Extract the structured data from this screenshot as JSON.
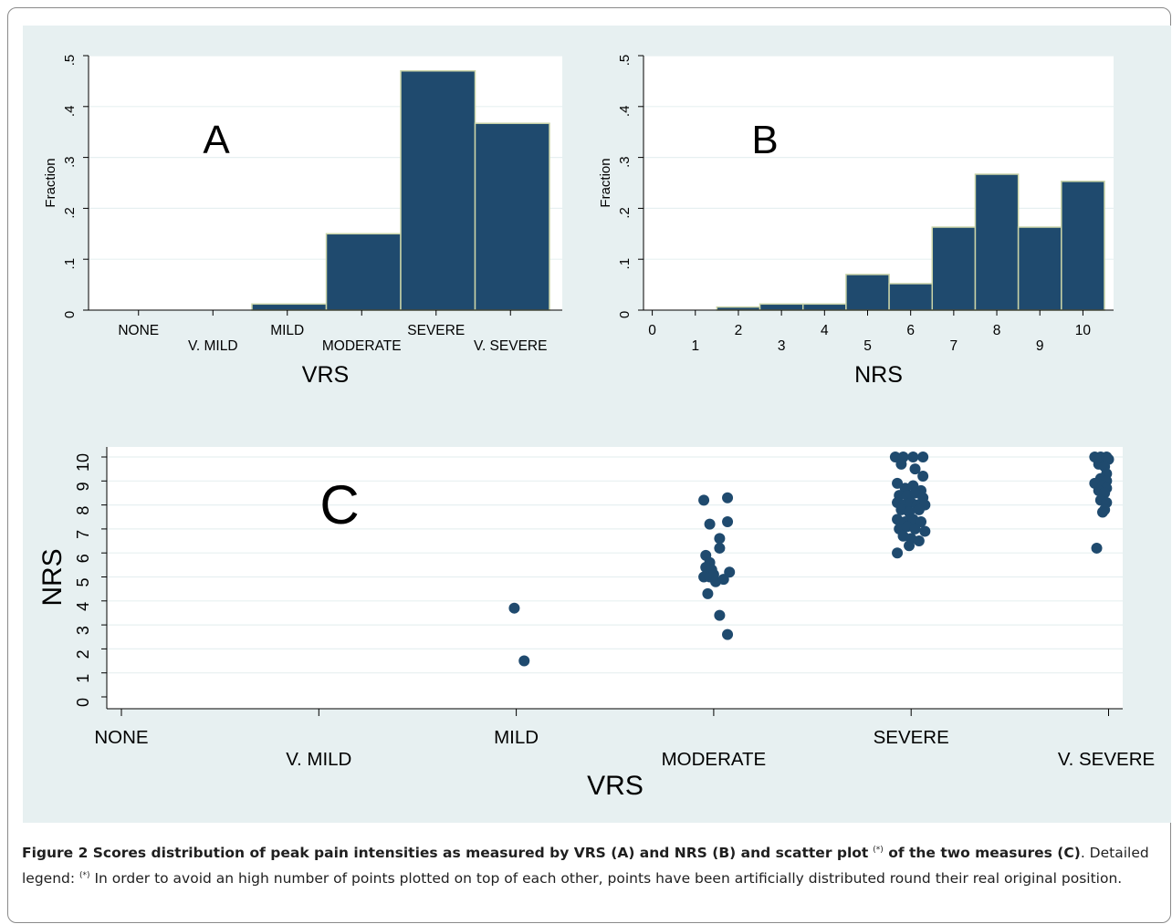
{
  "figure": {
    "caption_title": "Figure 2 Scores distribution of peak pain intensities as measured by VRS (A) and NRS (B) and scatter plot",
    "caption_mark": "(*)",
    "caption_title_end": " of the two measures (C)",
    "caption_period": ". Detailed legend: ",
    "caption_body": " In order to avoid an high number of points plotted on top of each other, points have been artificially distributed round their real original position."
  },
  "colors": {
    "bar": "#1f4a6e",
    "bar_edge": "#c9d3a7",
    "point": "#1f4a6e",
    "panel_bg": "#e7f0f1",
    "plot_bg": "#ffffff",
    "grid": "#e7f0f1"
  },
  "chart_data": [
    {
      "panel": "A",
      "type": "bar",
      "panel_label": "A",
      "xlabel": "VRS",
      "ylabel": "Fraction",
      "categories": [
        "NONE",
        "V. MILD",
        "MILD",
        "MODERATE",
        "SEVERE",
        "V. SEVERE"
      ],
      "values": [
        0,
        0,
        0.012,
        0.15,
        0.47,
        0.367
      ],
      "ylim": [
        0,
        0.5
      ],
      "yticks": [
        "0",
        ".1",
        ".2",
        ".3",
        ".4",
        ".5"
      ],
      "grid": true
    },
    {
      "panel": "B",
      "type": "bar",
      "panel_label": "B",
      "xlabel": "NRS",
      "ylabel": "Fraction",
      "categories": [
        "0",
        "1",
        "2",
        "3",
        "4",
        "5",
        "6",
        "7",
        "8",
        "9",
        "10"
      ],
      "values": [
        0,
        0,
        0.006,
        0.012,
        0.012,
        0.07,
        0.052,
        0.163,
        0.267,
        0.163,
        0.253
      ],
      "ylim": [
        0,
        0.5
      ],
      "yticks": [
        "0",
        ".1",
        ".2",
        ".3",
        ".4",
        ".5"
      ],
      "grid": true
    },
    {
      "panel": "C",
      "type": "scatter",
      "panel_label": "C",
      "xlabel": "VRS",
      "ylabel": "NRS",
      "categories": [
        "NONE",
        "V. MILD",
        "MILD",
        "MODERATE",
        "SEVERE",
        "V. SEVERE"
      ],
      "yticks": [
        "0",
        "1",
        "2",
        "3",
        "4",
        "5",
        "6",
        "7",
        "8",
        "9",
        "10"
      ],
      "ylim": [
        0,
        10
      ],
      "grid": true,
      "points": [
        [
          1.99,
          3.7
        ],
        [
          2.04,
          1.5
        ],
        [
          2.95,
          8.2
        ],
        [
          3.07,
          8.3
        ],
        [
          2.98,
          7.2
        ],
        [
          3.07,
          7.3
        ],
        [
          3.03,
          6.6
        ],
        [
          3.03,
          6.2
        ],
        [
          2.96,
          5.9
        ],
        [
          2.98,
          5.6
        ],
        [
          2.96,
          5.4
        ],
        [
          2.99,
          5.3
        ],
        [
          2.95,
          5.0
        ],
        [
          2.98,
          5.0
        ],
        [
          3.0,
          5.1
        ],
        [
          3.01,
          4.8
        ],
        [
          3.05,
          4.9
        ],
        [
          3.08,
          5.2
        ],
        [
          2.97,
          4.3
        ],
        [
          3.03,
          3.4
        ],
        [
          3.07,
          2.6
        ],
        [
          3.92,
          10.0
        ],
        [
          3.96,
          10.0
        ],
        [
          4.01,
          10.0
        ],
        [
          4.06,
          10.0
        ],
        [
          3.95,
          9.7
        ],
        [
          4.02,
          9.5
        ],
        [
          4.06,
          9.2
        ],
        [
          3.93,
          8.9
        ],
        [
          3.97,
          8.7
        ],
        [
          4.01,
          8.8
        ],
        [
          4.05,
          8.6
        ],
        [
          3.94,
          8.4
        ],
        [
          3.98,
          8.4
        ],
        [
          4.02,
          8.5
        ],
        [
          4.06,
          8.3
        ],
        [
          3.93,
          8.1
        ],
        [
          3.96,
          8.0
        ],
        [
          4.0,
          8.1
        ],
        [
          4.03,
          8.0
        ],
        [
          4.07,
          8.0
        ],
        [
          3.95,
          7.8
        ],
        [
          3.99,
          7.7
        ],
        [
          4.04,
          7.8
        ],
        [
          3.93,
          7.4
        ],
        [
          3.97,
          7.3
        ],
        [
          4.01,
          7.4
        ],
        [
          4.05,
          7.3
        ],
        [
          3.94,
          7.0
        ],
        [
          3.98,
          7.1
        ],
        [
          4.02,
          7.0
        ],
        [
          4.07,
          6.9
        ],
        [
          3.96,
          6.7
        ],
        [
          4.0,
          6.6
        ],
        [
          4.04,
          6.5
        ],
        [
          3.99,
          6.3
        ],
        [
          3.93,
          6.0
        ],
        [
          4.93,
          10.0
        ],
        [
          4.96,
          10.0
        ],
        [
          4.99,
          10.0
        ],
        [
          5.0,
          9.9
        ],
        [
          4.95,
          9.7
        ],
        [
          4.98,
          9.6
        ],
        [
          4.99,
          9.3
        ],
        [
          4.96,
          9.1
        ],
        [
          4.99,
          9.0
        ],
        [
          4.93,
          8.9
        ],
        [
          4.97,
          8.8
        ],
        [
          4.99,
          8.7
        ],
        [
          4.95,
          8.6
        ],
        [
          4.98,
          8.5
        ],
        [
          4.96,
          8.2
        ],
        [
          4.99,
          8.1
        ],
        [
          4.98,
          7.8
        ],
        [
          4.97,
          7.7
        ],
        [
          4.94,
          6.2
        ]
      ]
    }
  ]
}
